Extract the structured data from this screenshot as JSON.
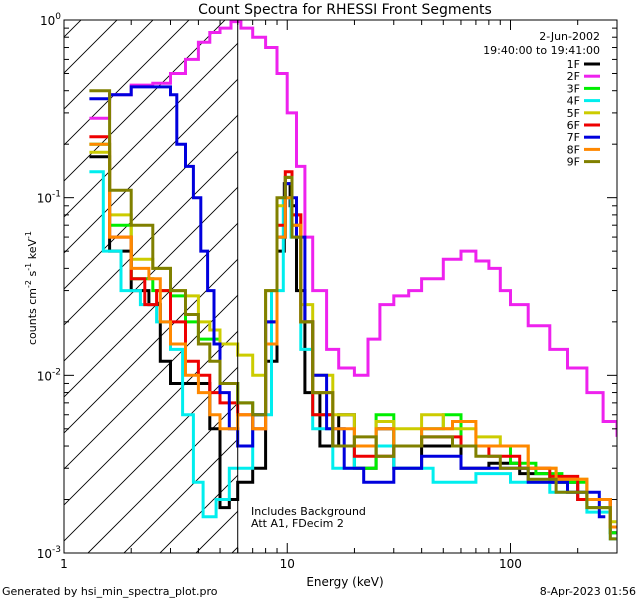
{
  "chart_data": {
    "type": "line",
    "title": "Count Spectra for RHESSI Front Segments",
    "xlabel": "Energy (keV)",
    "ylabel_parts": {
      "counts": "counts cm",
      "exp1": "-2",
      "s": " s",
      "exp2": "-1",
      "kev": " keV",
      "exp3": "-1"
    },
    "x_scale": "log",
    "y_scale": "log",
    "xlim": [
      1,
      300
    ],
    "ylim": [
      0.001,
      1.0
    ],
    "x_tick_labels": [
      {
        "value": 1,
        "label": "1"
      },
      {
        "value": 10,
        "label": "10"
      },
      {
        "value": 100,
        "label": "100"
      }
    ],
    "y_tick_labels": [
      {
        "value": 1,
        "base": "10",
        "exp": "0"
      },
      {
        "value": 0.1,
        "base": "10",
        "exp": "-1"
      },
      {
        "value": 0.01,
        "base": "10",
        "exp": "-2"
      },
      {
        "value": 0.001,
        "base": "10",
        "exp": "-3"
      }
    ],
    "vertical_marker_keV": 6,
    "shaded_region_keV": [
      1,
      6
    ],
    "date": "2-Jun-2002",
    "time_range": "19:40:00 to 19:41:00",
    "annotation_lines": [
      "Includes Background",
      "Att A1, FDecim 2"
    ],
    "footer_left": "Generated by hsi_min_spectra_plot.pro",
    "footer_right": "8-Apr-2023 01:56",
    "legend_position": "top-right",
    "series": [
      {
        "name": "1F",
        "color": "#000000",
        "points": [
          [
            1.3,
            0.17
          ],
          [
            1.6,
            0.05
          ],
          [
            2,
            0.03
          ],
          [
            2.4,
            0.025
          ],
          [
            2.7,
            0.012
          ],
          [
            3,
            0.009
          ],
          [
            3.5,
            0.009
          ],
          [
            4,
            0.009
          ],
          [
            4.5,
            0.005
          ],
          [
            5,
            0.0018
          ],
          [
            5.5,
            0.002
          ],
          [
            6,
            0.0025
          ],
          [
            7,
            0.003
          ],
          [
            8,
            0.012
          ],
          [
            9,
            0.05
          ],
          [
            9.7,
            0.12
          ],
          [
            10.3,
            0.09
          ],
          [
            11,
            0.03
          ],
          [
            12,
            0.008
          ],
          [
            14,
            0.004
          ],
          [
            17,
            0.006
          ],
          [
            20,
            0.003
          ],
          [
            25,
            0.005
          ],
          [
            30,
            0.003
          ],
          [
            40,
            0.004
          ],
          [
            60,
            0.003
          ],
          [
            80,
            0.0032
          ],
          [
            110,
            0.0028
          ],
          [
            150,
            0.0025
          ],
          [
            200,
            0.002
          ],
          [
            280,
            0.0013
          ]
        ]
      },
      {
        "name": "2F",
        "color": "#ee22ee",
        "points": [
          [
            1.3,
            0.28
          ],
          [
            1.6,
            0.38
          ],
          [
            2,
            0.43
          ],
          [
            2.5,
            0.44
          ],
          [
            3,
            0.5
          ],
          [
            3.5,
            0.6
          ],
          [
            4,
            0.75
          ],
          [
            4.5,
            0.85
          ],
          [
            5,
            0.9
          ],
          [
            5.6,
            0.98
          ],
          [
            6.2,
            0.9
          ],
          [
            7,
            0.8
          ],
          [
            8,
            0.7
          ],
          [
            9,
            0.5
          ],
          [
            10,
            0.3
          ],
          [
            11,
            0.15
          ],
          [
            12,
            0.06
          ],
          [
            13,
            0.03
          ],
          [
            15,
            0.014
          ],
          [
            17,
            0.011
          ],
          [
            20,
            0.01
          ],
          [
            23,
            0.016
          ],
          [
            26,
            0.025
          ],
          [
            30,
            0.028
          ],
          [
            35,
            0.03
          ],
          [
            40,
            0.035
          ],
          [
            50,
            0.045
          ],
          [
            60,
            0.05
          ],
          [
            70,
            0.044
          ],
          [
            80,
            0.04
          ],
          [
            90,
            0.03
          ],
          [
            100,
            0.025
          ],
          [
            120,
            0.019
          ],
          [
            150,
            0.014
          ],
          [
            180,
            0.011
          ],
          [
            220,
            0.008
          ],
          [
            260,
            0.0055
          ],
          [
            300,
            0.0045
          ]
        ]
      },
      {
        "name": "3F",
        "color": "#00ee00",
        "points": [
          [
            1.3,
            0.2
          ],
          [
            1.6,
            0.07
          ],
          [
            2,
            0.035
          ],
          [
            2.5,
            0.03
          ],
          [
            3,
            0.028
          ],
          [
            3.5,
            0.02
          ],
          [
            4,
            0.016
          ],
          [
            5,
            0.009
          ],
          [
            6,
            0.007
          ],
          [
            7,
            0.006
          ],
          [
            8,
            0.015
          ],
          [
            9,
            0.06
          ],
          [
            9.8,
            0.13
          ],
          [
            10.5,
            0.07
          ],
          [
            11.5,
            0.02
          ],
          [
            13,
            0.006
          ],
          [
            16,
            0.004
          ],
          [
            20,
            0.003
          ],
          [
            25,
            0.006
          ],
          [
            30,
            0.004
          ],
          [
            40,
            0.005
          ],
          [
            50,
            0.006
          ],
          [
            60,
            0.004
          ],
          [
            80,
            0.004
          ],
          [
            100,
            0.0032
          ],
          [
            130,
            0.0028
          ],
          [
            170,
            0.0025
          ],
          [
            220,
            0.0018
          ],
          [
            280,
            0.0013
          ]
        ]
      },
      {
        "name": "4F",
        "color": "#00eeee",
        "points": [
          [
            1.3,
            0.14
          ],
          [
            1.5,
            0.05
          ],
          [
            1.8,
            0.03
          ],
          [
            2.2,
            0.025
          ],
          [
            2.6,
            0.02
          ],
          [
            3,
            0.014
          ],
          [
            3.4,
            0.006
          ],
          [
            3.8,
            0.0025
          ],
          [
            4.2,
            0.0016
          ],
          [
            4.8,
            0.002
          ],
          [
            5.5,
            0.003
          ],
          [
            7,
            0.006
          ],
          [
            8.5,
            0.03
          ],
          [
            9.6,
            0.1
          ],
          [
            10.4,
            0.06
          ],
          [
            11.5,
            0.014
          ],
          [
            13,
            0.005
          ],
          [
            16,
            0.003
          ],
          [
            20,
            0.004
          ],
          [
            30,
            0.003
          ],
          [
            45,
            0.0025
          ],
          [
            70,
            0.0028
          ],
          [
            100,
            0.0025
          ],
          [
            150,
            0.0022
          ],
          [
            220,
            0.0017
          ],
          [
            280,
            0.0012
          ]
        ]
      },
      {
        "name": "5F",
        "color": "#cccc00",
        "points": [
          [
            1.3,
            0.18
          ],
          [
            1.6,
            0.08
          ],
          [
            2,
            0.045
          ],
          [
            2.5,
            0.04
          ],
          [
            3,
            0.03
          ],
          [
            3.5,
            0.028
          ],
          [
            4,
            0.02
          ],
          [
            4.5,
            0.018
          ],
          [
            5,
            0.015
          ],
          [
            6,
            0.013
          ],
          [
            7,
            0.01
          ],
          [
            8,
            0.03
          ],
          [
            9,
            0.09
          ],
          [
            9.8,
            0.12
          ],
          [
            10.5,
            0.08
          ],
          [
            11.5,
            0.025
          ],
          [
            13,
            0.01
          ],
          [
            16,
            0.006
          ],
          [
            20,
            0.004
          ],
          [
            25,
            0.0055
          ],
          [
            30,
            0.005
          ],
          [
            40,
            0.006
          ],
          [
            50,
            0.005
          ],
          [
            70,
            0.0045
          ],
          [
            90,
            0.004
          ],
          [
            120,
            0.003
          ],
          [
            160,
            0.0026
          ],
          [
            220,
            0.002
          ],
          [
            280,
            0.0015
          ]
        ]
      },
      {
        "name": "6F",
        "color": "#ee0000",
        "points": [
          [
            1.3,
            0.22
          ],
          [
            1.6,
            0.06
          ],
          [
            2,
            0.035
          ],
          [
            2.3,
            0.025
          ],
          [
            2.6,
            0.03
          ],
          [
            3,
            0.02
          ],
          [
            3.5,
            0.012
          ],
          [
            4,
            0.01
          ],
          [
            4.5,
            0.008
          ],
          [
            5,
            0.007
          ],
          [
            6,
            0.006
          ],
          [
            7,
            0.005
          ],
          [
            8,
            0.02
          ],
          [
            9,
            0.07
          ],
          [
            9.8,
            0.14
          ],
          [
            10.5,
            0.08
          ],
          [
            11.5,
            0.02
          ],
          [
            13,
            0.006
          ],
          [
            16,
            0.004
          ],
          [
            20,
            0.0035
          ],
          [
            30,
            0.004
          ],
          [
            40,
            0.0045
          ],
          [
            60,
            0.004
          ],
          [
            80,
            0.0035
          ],
          [
            110,
            0.003
          ],
          [
            150,
            0.0027
          ],
          [
            200,
            0.002
          ],
          [
            280,
            0.0014
          ]
        ]
      },
      {
        "name": "7F",
        "color": "#0000dd",
        "points": [
          [
            1.3,
            0.36
          ],
          [
            1.6,
            0.38
          ],
          [
            2,
            0.42
          ],
          [
            2.5,
            0.42
          ],
          [
            3,
            0.38
          ],
          [
            3.2,
            0.2
          ],
          [
            3.5,
            0.15
          ],
          [
            3.8,
            0.1
          ],
          [
            4.1,
            0.05
          ],
          [
            4.4,
            0.03
          ],
          [
            4.7,
            0.015
          ],
          [
            5,
            0.008
          ],
          [
            5.5,
            0.005
          ],
          [
            6,
            0.004
          ],
          [
            7,
            0.006
          ],
          [
            8,
            0.02
          ],
          [
            9,
            0.06
          ],
          [
            9.8,
            0.12
          ],
          [
            10.5,
            0.1
          ],
          [
            11,
            0.06
          ],
          [
            12,
            0.02
          ],
          [
            13,
            0.01
          ],
          [
            15,
            0.005
          ],
          [
            18,
            0.003
          ],
          [
            22,
            0.0025
          ],
          [
            30,
            0.003
          ],
          [
            40,
            0.0035
          ],
          [
            60,
            0.003
          ],
          [
            80,
            0.003
          ],
          [
            120,
            0.0025
          ],
          [
            180,
            0.0022
          ],
          [
            250,
            0.0016
          ]
        ]
      },
      {
        "name": "8F",
        "color": "#ff8800",
        "points": [
          [
            1.3,
            0.2
          ],
          [
            1.6,
            0.06
          ],
          [
            2,
            0.04
          ],
          [
            2.4,
            0.035
          ],
          [
            2.7,
            0.02
          ],
          [
            3,
            0.015
          ],
          [
            3.5,
            0.01
          ],
          [
            4,
            0.008
          ],
          [
            4.5,
            0.006
          ],
          [
            5,
            0.005
          ],
          [
            6,
            0.006
          ],
          [
            7,
            0.005
          ],
          [
            8,
            0.015
          ],
          [
            9,
            0.06
          ],
          [
            9.8,
            0.1
          ],
          [
            10.5,
            0.07
          ],
          [
            11.5,
            0.02
          ],
          [
            13,
            0.008
          ],
          [
            16,
            0.005
          ],
          [
            20,
            0.004
          ],
          [
            25,
            0.005
          ],
          [
            30,
            0.004
          ],
          [
            40,
            0.005
          ],
          [
            55,
            0.0055
          ],
          [
            70,
            0.004
          ],
          [
            90,
            0.004
          ],
          [
            120,
            0.003
          ],
          [
            160,
            0.0026
          ],
          [
            220,
            0.002
          ],
          [
            280,
            0.0014
          ]
        ]
      },
      {
        "name": "9F",
        "color": "#808000",
        "points": [
          [
            1.3,
            0.4
          ],
          [
            1.6,
            0.11
          ],
          [
            2,
            0.07
          ],
          [
            2.5,
            0.04
          ],
          [
            3,
            0.03
          ],
          [
            3.5,
            0.022
          ],
          [
            4,
            0.015
          ],
          [
            4.5,
            0.012
          ],
          [
            5,
            0.009
          ],
          [
            6,
            0.007
          ],
          [
            7,
            0.006
          ],
          [
            8,
            0.03
          ],
          [
            9,
            0.1
          ],
          [
            9.8,
            0.13
          ],
          [
            10.5,
            0.06
          ],
          [
            11.5,
            0.02
          ],
          [
            13,
            0.008
          ],
          [
            16,
            0.004
          ],
          [
            20,
            0.0045
          ],
          [
            25,
            0.0035
          ],
          [
            30,
            0.004
          ],
          [
            40,
            0.0045
          ],
          [
            55,
            0.004
          ],
          [
            70,
            0.0035
          ],
          [
            90,
            0.003
          ],
          [
            120,
            0.0026
          ],
          [
            160,
            0.0022
          ],
          [
            220,
            0.0018
          ],
          [
            280,
            0.0012
          ]
        ]
      }
    ]
  }
}
